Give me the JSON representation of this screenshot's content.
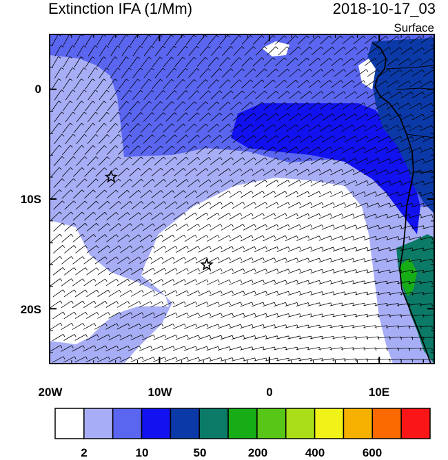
{
  "title": "Extinction IFA (1/Mm)",
  "timestamp": "2018-10-17_03",
  "level": "Surface",
  "y_ticks": [
    {
      "label": "0",
      "lat": 0
    },
    {
      "label": "10S",
      "lat": -10
    },
    {
      "label": "20S",
      "lat": -20
    }
  ],
  "x_ticks": [
    {
      "label": "20W",
      "lon": -20
    },
    {
      "label": "10W",
      "lon": -10
    },
    {
      "label": "0",
      "lon": 0
    },
    {
      "label": "10E",
      "lon": 10
    }
  ],
  "map_extent": {
    "lon_min": -20,
    "lon_max": 15,
    "lat_min": -25,
    "lat_max": 5
  },
  "markers": [
    {
      "name": "star-marker-1",
      "lon": -14.4,
      "lat": -8.0
    },
    {
      "name": "star-marker-2",
      "lon": -5.7,
      "lat": -16.0
    }
  ],
  "colorbar": {
    "colors": [
      "#ffffff",
      "#a8aef5",
      "#5a66f0",
      "#1212f0",
      "#0b3aa8",
      "#0b7a66",
      "#17ad17",
      "#58c617",
      "#aade18",
      "#f0f218",
      "#f5b000",
      "#fa6a00",
      "#fa1616"
    ],
    "labels": [
      "2",
      "10",
      "50",
      "200",
      "400",
      "600"
    ]
  }
}
